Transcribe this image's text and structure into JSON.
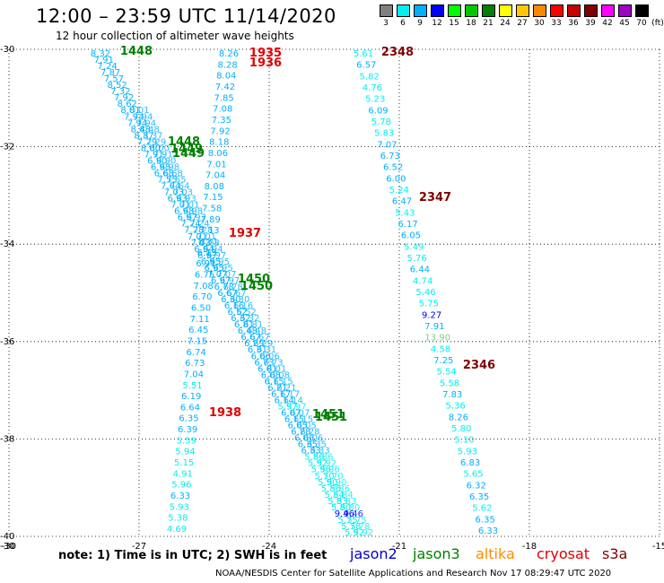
{
  "title": "12:00 – 23:59 UTC 11/14/2020",
  "subtitle": "12 hour collection of altimeter wave heights",
  "scale": {
    "unit": "(ft)",
    "boxes": [
      {
        "label": "3",
        "color": "#808080"
      },
      {
        "label": "6",
        "color": "#00f0f0"
      },
      {
        "label": "9",
        "color": "#00b0ff"
      },
      {
        "label": "12",
        "color": "#0000ff"
      },
      {
        "label": "15",
        "color": "#00ff00"
      },
      {
        "label": "18",
        "color": "#00c800"
      },
      {
        "label": "21",
        "color": "#008000"
      },
      {
        "label": "24",
        "color": "#ffff00"
      },
      {
        "label": "27",
        "color": "#ffc800"
      },
      {
        "label": "30",
        "color": "#ff8800"
      },
      {
        "label": "33",
        "color": "#ff0000"
      },
      {
        "label": "36",
        "color": "#c80000"
      },
      {
        "label": "39",
        "color": "#800000"
      },
      {
        "label": "42",
        "color": "#ff00ff"
      },
      {
        "label": "45",
        "color": "#a000c8"
      },
      {
        "label": "70",
        "color": "#000000"
      }
    ]
  },
  "axes": {
    "lon_ticks": [
      -30,
      -27,
      -24,
      -21,
      -18,
      -15
    ],
    "lat_ticks": [
      -30,
      -32,
      -34,
      -36,
      -38,
      -40
    ]
  },
  "tracks": [
    {
      "name": "track1",
      "values": [
        "8.32",
        "7.91",
        "7.24",
        "7.87",
        "7.57",
        "8.52",
        "7.32",
        "7.92",
        "8.62",
        "8.01",
        "7.94",
        "7.94",
        "8.48",
        "8.37",
        "7.29",
        "8.00",
        "7.91",
        "6.90",
        "6.98",
        "6.68",
        "7.55",
        "7.64",
        "7.03",
        "6.93",
        "7.01",
        "6.98",
        "6.97",
        "7.24",
        "7.28",
        "7.01",
        "7.03",
        "6.94",
        "6.97",
        "6.95",
        "6.95",
        "7.07",
        "6.97",
        "6.78",
        "6.67",
        "6.30",
        "6.16",
        "6.52",
        "6.32",
        "6.81",
        "6.48",
        "6.67",
        "6.29",
        "6.31",
        "6.06",
        "6.73",
        "6.01",
        "6.08",
        "6.15",
        "6.21",
        "6.17",
        "6.14",
        "5.97",
        "6.07",
        "6.15",
        "6.05",
        "6.28",
        "6.06",
        "6.35",
        "6.33",
        "5.86",
        "5.92",
        "5.96",
        "5.70",
        "5.90",
        "5.86",
        "5.84",
        "5.83",
        "5.80",
        "9.46",
        "5.75",
        "5.78",
        "5.92"
      ]
    },
    {
      "name": "track2",
      "values": [
        "8.26",
        "8.28",
        "8.04",
        "7.42",
        "7.85",
        "7.08",
        "7.35",
        "7.92",
        "8.18",
        "8.06",
        "7.01",
        "7.04",
        "8.08",
        "7.15",
        "7.58",
        "7.89",
        "7.13",
        "8.31",
        "6.13",
        "6.91",
        "6.75",
        "7.08",
        "6.70",
        "6.50",
        "7.11",
        "6.45",
        "7.15",
        "6.74",
        "6.73",
        "7.04",
        "5.51",
        "6.19",
        "6.64",
        "6.35",
        "6.39",
        "5.59",
        "5.94",
        "5.15",
        "4.91",
        "5.96",
        "6.33",
        "5.93",
        "5.38",
        "4.69"
      ]
    },
    {
      "name": "track3",
      "values": [
        "5.61",
        "6.57",
        "5.82",
        "4.76",
        "5.23",
        "6.09",
        "5.78",
        "5.83",
        "7.07",
        "6.73",
        "6.52",
        "6.00",
        "5.24",
        "6.47",
        "5.43",
        "6.17",
        "6.05",
        "5.49",
        "5.76",
        "6.44",
        "4.74",
        "5.46",
        "5.75",
        "9.27",
        "7.91",
        "13.90",
        "4.58",
        "7.25",
        "5.54",
        "5.58",
        "7.83",
        "5.36",
        "8.26",
        "5.80",
        "5.10",
        "5.93",
        "6.83",
        "5.65",
        "6.32",
        "6.35",
        "5.62",
        "6.35",
        "6.33"
      ]
    }
  ],
  "time_labels": [
    {
      "text": "1448",
      "sat": "jason3"
    },
    {
      "text": "1935",
      "sat": "cryosat"
    },
    {
      "text": "1936",
      "sat": "cryosat"
    },
    {
      "text": "2348",
      "sat": "s3a"
    },
    {
      "text": "1448",
      "sat": "jason3"
    },
    {
      "text": "1449",
      "sat": "jason3"
    },
    {
      "text": "1449",
      "sat": "jason3"
    },
    {
      "text": "2347",
      "sat": "s3a"
    },
    {
      "text": "1937",
      "sat": "cryosat"
    },
    {
      "text": "1450",
      "sat": "jason3"
    },
    {
      "text": "1450",
      "sat": "jason3"
    },
    {
      "text": "2346",
      "sat": "s3a"
    },
    {
      "text": "1938",
      "sat": "cryosat"
    },
    {
      "text": "1451",
      "sat": "jason3"
    },
    {
      "text": "1451",
      "sat": "jason3"
    }
  ],
  "note": "note:  1) Time is in UTC;  2) SWH is in feet",
  "legend": [
    {
      "name": "jason2",
      "color": "#0000cc"
    },
    {
      "name": "jason3",
      "color": "#008000"
    },
    {
      "name": "altika",
      "color": "#ff8c00"
    },
    {
      "name": "cryosat",
      "color": "#e00000"
    },
    {
      "name": "s3a",
      "color": "#800000"
    }
  ],
  "credit": "NOAA/NESDIS Center for Satellite Applications and Research    Nov 17 08:29:47 UTC 2020"
}
